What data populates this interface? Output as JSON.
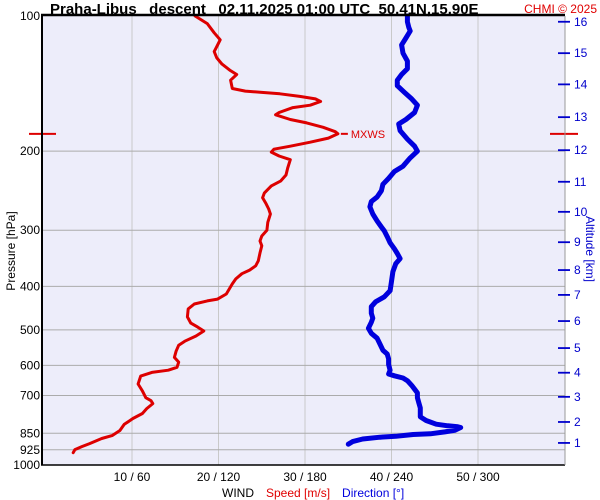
{
  "header": {
    "title": "Praha-Libus   descent   02.11.2025 01:00 UTC  50.41N,15.90E",
    "copyright": "CHMI © 2025"
  },
  "axes": {
    "left_title": "Pressure [hPa]",
    "right_title": "Altitude [km]",
    "wind_label": "WIND",
    "speed_label": "Speed [m/s]",
    "direction_label": "Direction [°]"
  },
  "colors": {
    "speed_curve": "#dd0000",
    "direction_curve": "#0000dd",
    "altitude_text": "#0000cc",
    "plot_bg": "#ededfa",
    "grid_h": "#ababab",
    "grid_v": "#c9c9c9",
    "border_dark": "#000000",
    "border_right": "#999999"
  },
  "chart_data": {
    "type": "line",
    "title": "Praha-Libus descent 02.11.2025 01:00 UTC 50.41N,15.90E",
    "station": "Praha-Libus",
    "sounding_type": "descent",
    "datetime": "02.11.2025 01:00 UTC",
    "location": "50.41N,15.90E",
    "x_axis": {
      "label": "WIND Speed [m/s] Direction [°]",
      "tick_labels": [
        "10 / 60",
        "20 / 120",
        "30 / 180",
        "40 / 240",
        "50 / 300"
      ],
      "speed_ticks": [
        10,
        20,
        30,
        40,
        50
      ],
      "direction_ticks": [
        60,
        120,
        180,
        240,
        300
      ],
      "speed_range": [
        0,
        60
      ],
      "direction_range": [
        0,
        360
      ],
      "grid": true
    },
    "y_axis": {
      "label": "Pressure [hPa]",
      "scale": "log",
      "ticks": [
        100,
        200,
        300,
        400,
        500,
        600,
        700,
        850,
        925,
        1000
      ],
      "gridline_ticks": [
        200,
        300,
        400,
        500,
        600,
        700,
        850,
        925
      ],
      "range": [
        100,
        1000
      ]
    },
    "y2_axis": {
      "label": "Altitude [km]",
      "ticks": [
        {
          "km": 16,
          "hpa": 103
        },
        {
          "km": 15,
          "hpa": 121
        },
        {
          "km": 14,
          "hpa": 142
        },
        {
          "km": 13,
          "hpa": 168
        },
        {
          "km": 12,
          "hpa": 199
        },
        {
          "km": 11,
          "hpa": 234
        },
        {
          "km": 10,
          "hpa": 273
        },
        {
          "km": 9,
          "hpa": 319
        },
        {
          "km": 8,
          "hpa": 368
        },
        {
          "km": 7,
          "hpa": 418
        },
        {
          "km": 6,
          "hpa": 478
        },
        {
          "km": 5,
          "hpa": 549
        },
        {
          "km": 4,
          "hpa": 623
        },
        {
          "km": 3,
          "hpa": 705
        },
        {
          "km": 2,
          "hpa": 802
        },
        {
          "km": 1,
          "hpa": 893
        }
      ]
    },
    "annotations": [
      {
        "label": "MXWS",
        "speed": 33.8,
        "hpa": 183
      }
    ],
    "series": [
      {
        "name": "Speed [m/s]",
        "axis": "speed",
        "color": "#dd0000",
        "width": 3,
        "points": [
          [
            17.3,
            100
          ],
          [
            18.7,
            104
          ],
          [
            19.5,
            109
          ],
          [
            20.2,
            113
          ],
          [
            19.8,
            117
          ],
          [
            19.5,
            120
          ],
          [
            19.8,
            124
          ],
          [
            20.4,
            128
          ],
          [
            21.3,
            132
          ],
          [
            22.1,
            135
          ],
          [
            21.4,
            139
          ],
          [
            21.6,
            145
          ],
          [
            23.1,
            147
          ],
          [
            25.0,
            148
          ],
          [
            27.1,
            149
          ],
          [
            29.4,
            151
          ],
          [
            31.2,
            153
          ],
          [
            31.8,
            155
          ],
          [
            30.6,
            158
          ],
          [
            28.6,
            160
          ],
          [
            27.0,
            164
          ],
          [
            26.6,
            166
          ],
          [
            28.3,
            170
          ],
          [
            30.2,
            173
          ],
          [
            32.1,
            177
          ],
          [
            33.5,
            181
          ],
          [
            33.8,
            183
          ],
          [
            32.7,
            187
          ],
          [
            30.6,
            191
          ],
          [
            28.3,
            195
          ],
          [
            26.4,
            198
          ],
          [
            26.1,
            201
          ],
          [
            27.0,
            205
          ],
          [
            28.3,
            209
          ],
          [
            28.0,
            218
          ],
          [
            27.8,
            226
          ],
          [
            27.2,
            233
          ],
          [
            26.1,
            239
          ],
          [
            25.3,
            248
          ],
          [
            25.1,
            254
          ],
          [
            25.5,
            262
          ],
          [
            25.8,
            269
          ],
          [
            26.0,
            276
          ],
          [
            25.7,
            288
          ],
          [
            25.6,
            300
          ],
          [
            25.0,
            309
          ],
          [
            24.8,
            317
          ],
          [
            25.0,
            325
          ],
          [
            24.8,
            337
          ],
          [
            24.6,
            351
          ],
          [
            24.3,
            360
          ],
          [
            23.6,
            368
          ],
          [
            22.7,
            375
          ],
          [
            22.0,
            385
          ],
          [
            21.6,
            395
          ],
          [
            20.9,
            416
          ],
          [
            19.9,
            427
          ],
          [
            18.7,
            431
          ],
          [
            17.2,
            438
          ],
          [
            16.5,
            449
          ],
          [
            16.4,
            468
          ],
          [
            16.8,
            483
          ],
          [
            17.6,
            493
          ],
          [
            18.3,
            503
          ],
          [
            17.4,
            516
          ],
          [
            16.1,
            530
          ],
          [
            15.4,
            541
          ],
          [
            15.1,
            558
          ],
          [
            14.9,
            576
          ],
          [
            15.4,
            590
          ],
          [
            15.2,
            606
          ],
          [
            14.2,
            615
          ],
          [
            12.3,
            622
          ],
          [
            11.0,
            634
          ],
          [
            10.7,
            660
          ],
          [
            11.2,
            684
          ],
          [
            11.6,
            708
          ],
          [
            12.2,
            719
          ],
          [
            12.4,
            730
          ],
          [
            11.7,
            749
          ],
          [
            11.2,
            768
          ],
          [
            10.1,
            788
          ],
          [
            9.1,
            812
          ],
          [
            8.6,
            838
          ],
          [
            7.7,
            860
          ],
          [
            6.5,
            873
          ],
          [
            5.1,
            896
          ],
          [
            4.2,
            910
          ],
          [
            3.4,
            924
          ],
          [
            3.2,
            939
          ]
        ]
      },
      {
        "name": "Direction [°]",
        "axis": "direction",
        "color": "#0000dd",
        "width": 5,
        "points": [
          [
            251,
            100
          ],
          [
            251,
            103
          ],
          [
            252,
            106
          ],
          [
            253,
            108
          ],
          [
            250,
            112
          ],
          [
            247,
            116
          ],
          [
            248,
            121
          ],
          [
            251,
            126
          ],
          [
            251,
            131
          ],
          [
            247,
            135
          ],
          [
            244,
            139
          ],
          [
            244,
            143
          ],
          [
            249,
            148
          ],
          [
            254,
            153
          ],
          [
            258,
            158
          ],
          [
            256,
            164
          ],
          [
            250,
            170
          ],
          [
            245,
            174
          ],
          [
            246,
            180
          ],
          [
            251,
            188
          ],
          [
            256,
            195
          ],
          [
            258,
            200
          ],
          [
            253,
            207
          ],
          [
            248,
            216
          ],
          [
            242,
            222
          ],
          [
            238,
            230
          ],
          [
            234,
            237
          ],
          [
            233,
            245
          ],
          [
            230,
            253
          ],
          [
            226,
            259
          ],
          [
            225,
            266
          ],
          [
            227,
            276
          ],
          [
            230,
            286
          ],
          [
            233,
            295
          ],
          [
            235,
            301
          ],
          [
            237,
            310
          ],
          [
            239,
            320
          ],
          [
            242,
            330
          ],
          [
            244,
            338
          ],
          [
            246,
            347
          ],
          [
            243,
            356
          ],
          [
            241,
            371
          ],
          [
            240,
            390
          ],
          [
            239,
            409
          ],
          [
            235,
            422
          ],
          [
            229,
            433
          ],
          [
            226,
            444
          ],
          [
            226,
            459
          ],
          [
            227,
            471
          ],
          [
            226,
            481
          ],
          [
            224,
            496
          ],
          [
            226,
            509
          ],
          [
            230,
            522
          ],
          [
            232,
            538
          ],
          [
            234,
            555
          ],
          [
            237,
            566
          ],
          [
            238,
            580
          ],
          [
            238,
            597
          ],
          [
            239,
            615
          ],
          [
            238,
            627
          ],
          [
            242,
            633
          ],
          [
            248,
            640
          ],
          [
            251,
            649
          ],
          [
            254,
            665
          ],
          [
            256,
            678
          ],
          [
            258,
            691
          ],
          [
            258,
            708
          ],
          [
            259,
            728
          ],
          [
            260,
            746
          ],
          [
            260,
            767
          ],
          [
            260,
            781
          ],
          [
            264,
            796
          ],
          [
            271,
            811
          ],
          [
            279,
            818
          ],
          [
            286,
            822
          ],
          [
            288,
            825
          ],
          [
            284,
            837
          ],
          [
            277,
            844
          ],
          [
            267,
            852
          ],
          [
            255,
            855
          ],
          [
            243,
            863
          ],
          [
            232,
            867
          ],
          [
            220,
            875
          ],
          [
            213,
            887
          ],
          [
            210,
            899
          ]
        ]
      }
    ]
  }
}
